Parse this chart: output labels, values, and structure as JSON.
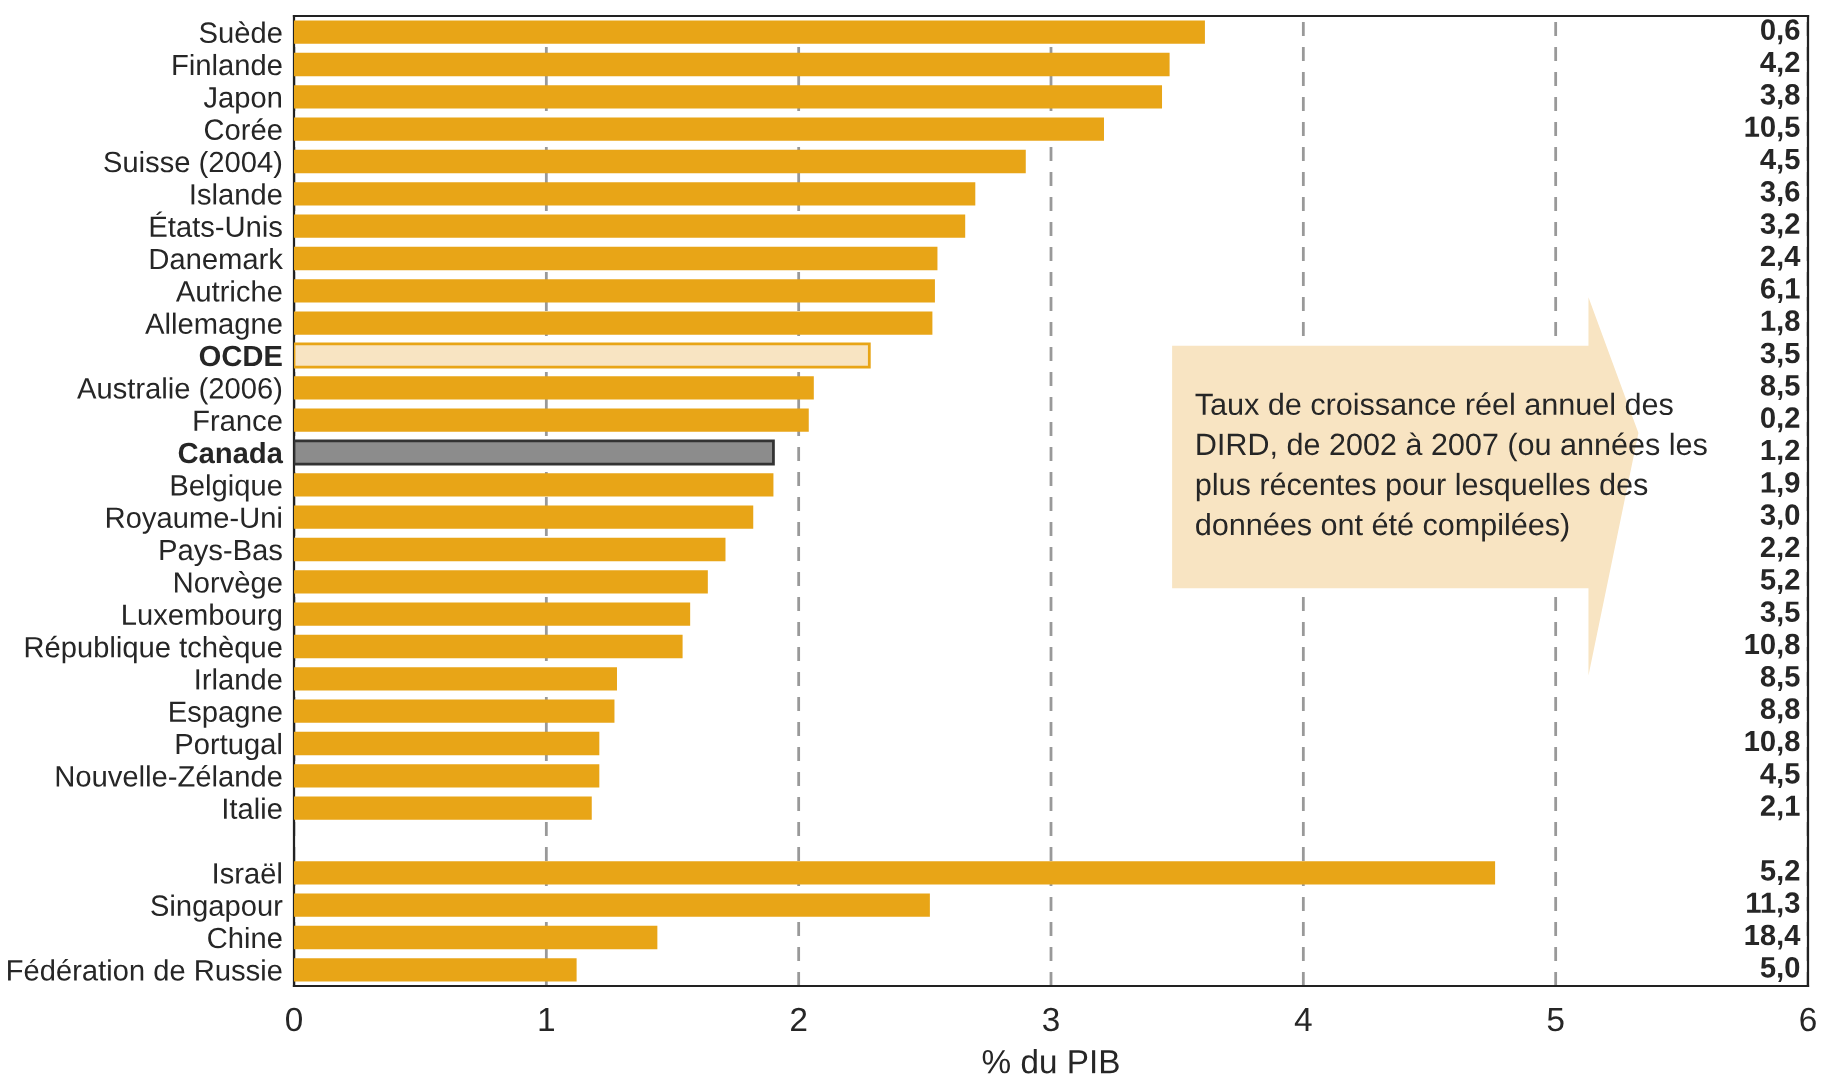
{
  "chart_data": {
    "type": "bar",
    "orientation": "horizontal",
    "xlabel": "% du PIB",
    "categories": [
      "Suède",
      "Finlande",
      "Japon",
      "Corée",
      "Suisse (2004)",
      "Islande",
      "États-Unis",
      "Danemark",
      "Autriche",
      "Allemagne",
      "OCDE",
      "Australie (2006)",
      "France",
      "Canada",
      "Belgique",
      "Royaume-Uni",
      "Pays-Bas",
      "Norvège",
      "Luxembourg",
      "République tchèque",
      "Irlande",
      "Espagne",
      "Portugal",
      "Nouvelle-Zélande",
      "Italie",
      null,
      "Israël",
      "Singapour",
      "Chine",
      "Fédération de Russie"
    ],
    "values": [
      3.61,
      3.47,
      3.44,
      3.21,
      2.9,
      2.7,
      2.66,
      2.55,
      2.54,
      2.53,
      2.28,
      2.06,
      2.04,
      1.9,
      1.9,
      1.82,
      1.71,
      1.64,
      1.57,
      1.54,
      1.28,
      1.27,
      1.21,
      1.21,
      1.18,
      null,
      4.76,
      2.52,
      1.44,
      1.12
    ],
    "colors": [
      "#e8a517",
      "#e8a517",
      "#e8a517",
      "#e8a517",
      "#e8a517",
      "#e8a517",
      "#e8a517",
      "#e8a517",
      "#e8a517",
      "#e8a517",
      "#f8e4c2",
      "#e8a517",
      "#e8a517",
      "#8c8c8c",
      "#e8a517",
      "#e8a517",
      "#e8a517",
      "#e8a517",
      "#e8a517",
      "#e8a517",
      "#e8a517",
      "#e8a517",
      "#e8a517",
      "#e8a517",
      "#e8a517",
      "#e8a517",
      "#e8a517",
      "#e8a517",
      "#e8a517",
      "#e8a517"
    ],
    "xlim": [
      0,
      6
    ],
    "xticks": [
      0,
      1,
      2,
      3,
      4,
      5,
      6
    ],
    "grid": "x",
    "annotations": [
      "Taux de croissance réel annuel des DIRD, de 2002 à 2007 (ou années les plus récentes pour lesquelles des données ont été compilées)",
      "0,6",
      "4,2",
      "3,8",
      "10,5",
      "4,5",
      "3,6",
      "3,2",
      "2,4",
      "6,1",
      "1,8",
      "3,5",
      "8,5",
      "0,2",
      "1,2",
      "1,9",
      "3,0",
      "2,2",
      "5,2",
      "3,5",
      "10,8",
      "8,5",
      "8,8",
      "10,8",
      "4,5",
      "2,1",
      "5,2",
      "11,3",
      "18,4",
      "5,0"
    ]
  }
}
